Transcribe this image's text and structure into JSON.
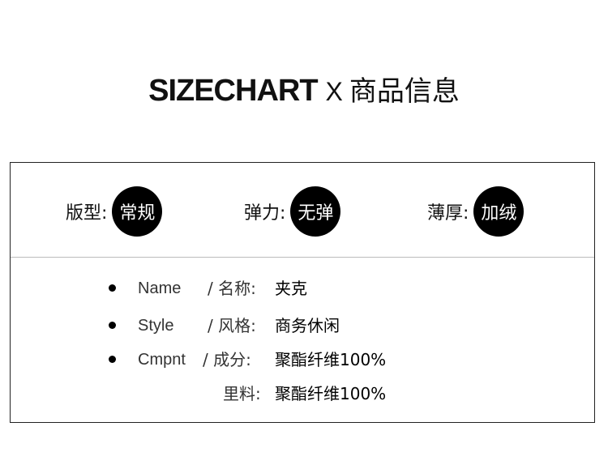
{
  "title": {
    "english": "SIZECHART",
    "separator": "X",
    "chinese": "商品信息"
  },
  "attributes": [
    {
      "label": "版型:",
      "value": "常规"
    },
    {
      "label": "弹力:",
      "value": "无弹"
    },
    {
      "label": "薄厚:",
      "value": "加绒"
    }
  ],
  "details": [
    {
      "english": "Name",
      "label": "/ 名称:",
      "value": "夹克",
      "bullet": true
    },
    {
      "english": "Style",
      "label": "/ 风格:",
      "value": "商务休闲",
      "bullet": true
    },
    {
      "english": "Cmpnt",
      "label": "/  成分:",
      "value": "聚酯纤维100%",
      "bullet": true
    },
    {
      "english": "",
      "label": "里料:",
      "value": "聚酯纤维100%",
      "bullet": false
    }
  ]
}
